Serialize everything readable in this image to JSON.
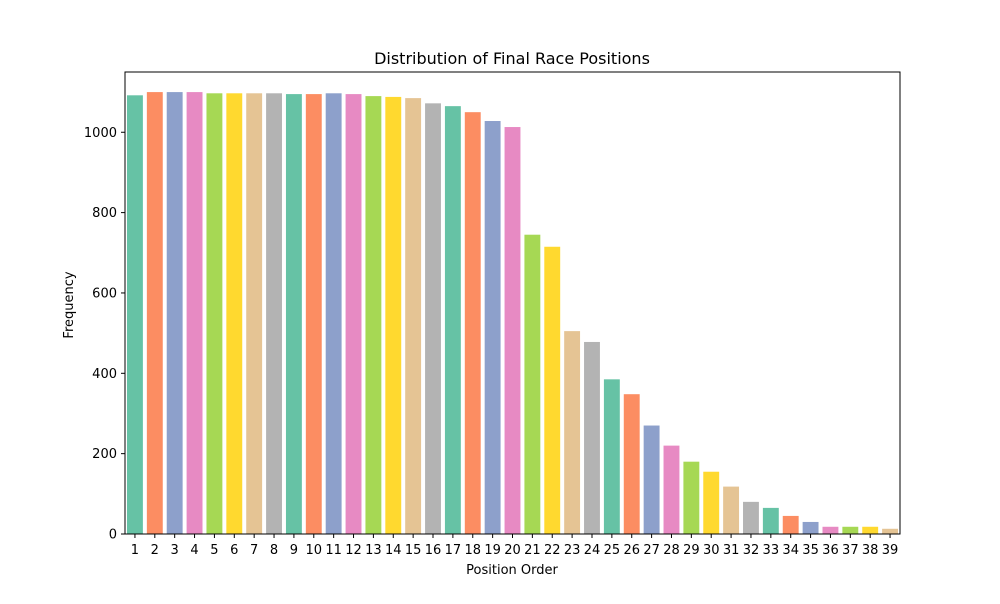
{
  "chart_data": {
    "type": "bar",
    "title": "Distribution of Final Race Positions",
    "xlabel": "Position Order",
    "ylabel": "Frequency",
    "ylim": [
      0,
      1150
    ],
    "yticks": [
      0,
      200,
      400,
      600,
      800,
      1000
    ],
    "grid": false,
    "categories": [
      "1",
      "2",
      "3",
      "4",
      "5",
      "6",
      "7",
      "8",
      "9",
      "10",
      "11",
      "12",
      "13",
      "14",
      "15",
      "16",
      "17",
      "18",
      "19",
      "20",
      "21",
      "22",
      "23",
      "24",
      "25",
      "26",
      "27",
      "28",
      "29",
      "30",
      "31",
      "32",
      "33",
      "34",
      "35",
      "36",
      "37",
      "38",
      "39"
    ],
    "values": [
      1092,
      1100,
      1100,
      1100,
      1097,
      1097,
      1097,
      1097,
      1095,
      1095,
      1097,
      1095,
      1090,
      1088,
      1085,
      1072,
      1065,
      1050,
      1028,
      1013,
      745,
      715,
      505,
      478,
      385,
      348,
      270,
      220,
      180,
      155,
      118,
      80,
      65,
      45,
      30,
      18,
      18,
      18,
      13
    ],
    "palette": [
      "#66c2a5",
      "#fc8d62",
      "#8da0cb",
      "#e78ac3",
      "#a6d854",
      "#ffd92f",
      "#e5c494",
      "#b3b3b3"
    ]
  }
}
